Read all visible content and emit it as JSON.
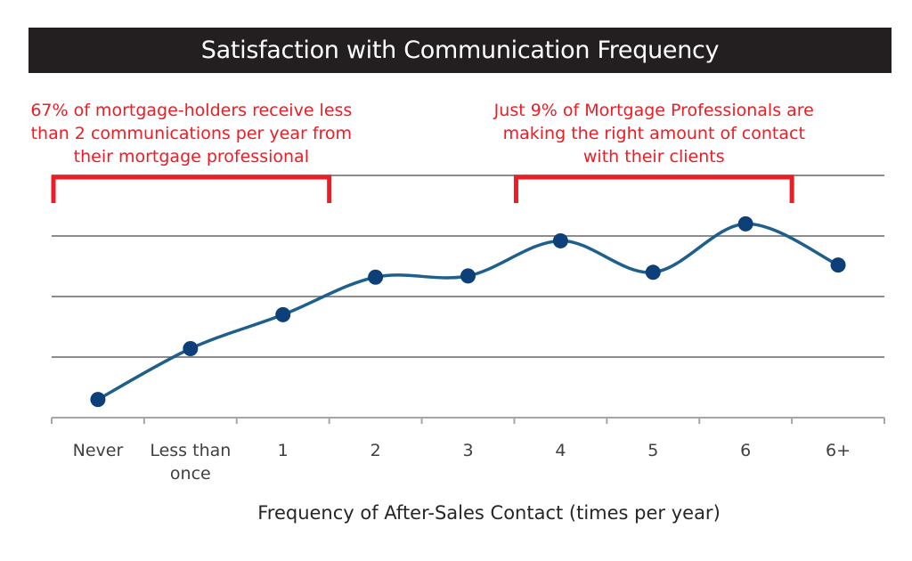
{
  "chart_data": {
    "type": "line",
    "title": "Satisfaction with Communication Frequency",
    "xlabel": "Frequency of After-Sales Contact (times per year)",
    "ylabel": "",
    "categories": [
      "Never",
      "Less than once",
      "1",
      "2",
      "3",
      "4",
      "5",
      "6",
      "6+"
    ],
    "category_lines": [
      [
        "Never"
      ],
      [
        "Less than",
        "once"
      ],
      [
        "1"
      ],
      [
        "2"
      ],
      [
        "3"
      ],
      [
        "4"
      ],
      [
        "5"
      ],
      [
        "6"
      ],
      [
        "6+"
      ]
    ],
    "series": [
      {
        "values": [
          0.15,
          0.57,
          0.85,
          1.16,
          1.17,
          1.46,
          1.2,
          1.6,
          1.26
        ]
      }
    ],
    "ylim": [
      0,
      2
    ],
    "grid": true,
    "smooth": true,
    "annotations": [
      {
        "lines": [
          "67% of mortgage-holders receive less",
          "than 2 communications per year from",
          "their mortgage professional"
        ],
        "span": [
          "Never",
          "1"
        ]
      },
      {
        "lines": [
          "Just 9% of Mortgage Professionals are",
          "making the right amount of contact",
          "with their clients"
        ],
        "span": [
          "4",
          "6"
        ]
      }
    ]
  },
  "colors": {
    "line": "#1f5f8b",
    "marker": "#0d3f78",
    "annotation": "#ee1c24",
    "bracket": "#ee1c24",
    "grid": "#8c8c8c",
    "axis": "#a6a6a6",
    "title_bg": "#231f20",
    "title_text": "#ffffff"
  }
}
